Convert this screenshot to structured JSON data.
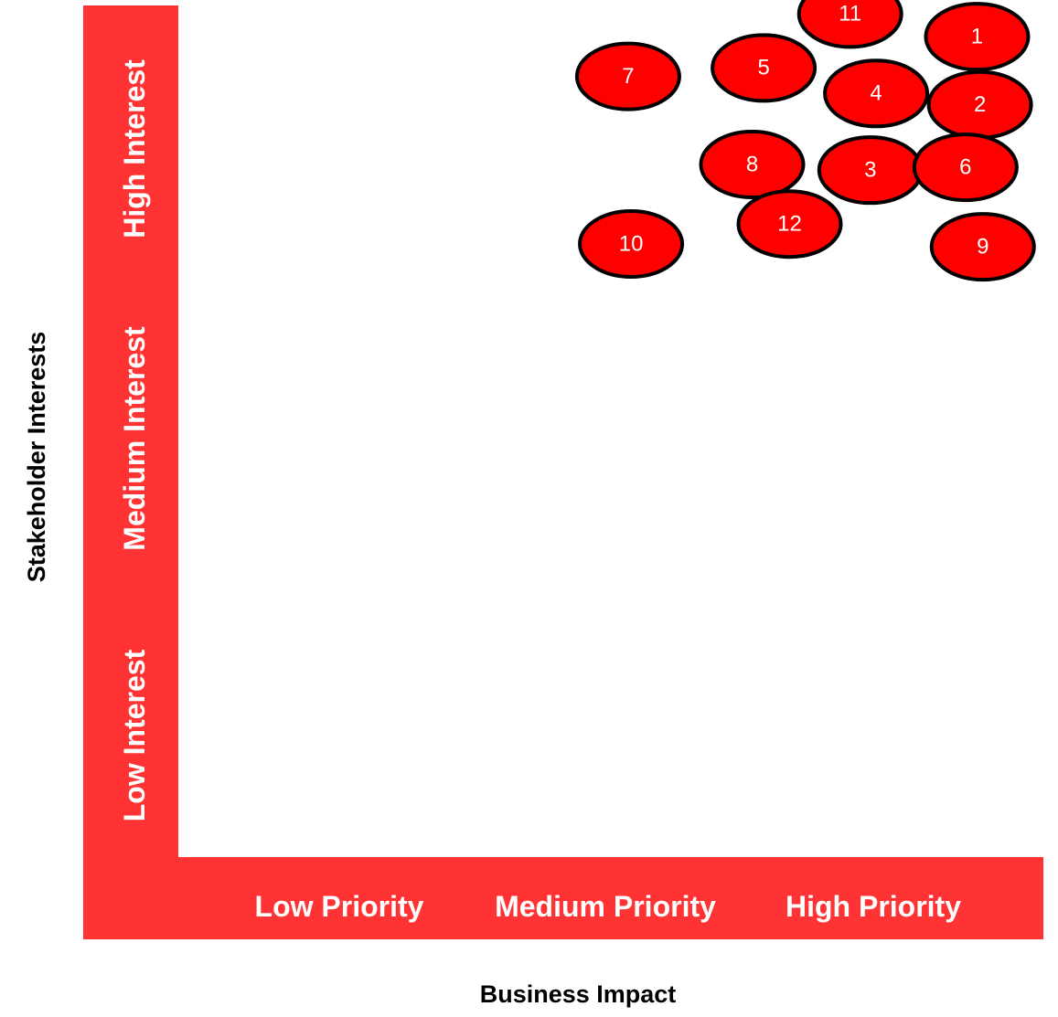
{
  "colors": {
    "band": "#ff3333",
    "bubble_fill": "#ff0000",
    "bubble_stroke": "#000000",
    "band_text": "#ffffff"
  },
  "chart_data": {
    "type": "scatter",
    "xlabel": "Business Impact",
    "ylabel": "Stakeholder Interests",
    "x_categories": [
      "Low Priority",
      "Medium Priority",
      "High Priority"
    ],
    "y_categories": [
      "Low Interest",
      "Medium Interest",
      "High Interest"
    ],
    "xlim": [
      0,
      3
    ],
    "ylim": [
      0,
      3
    ],
    "grid": false,
    "points": [
      {
        "label": "1",
        "x": 2.77,
        "y": 2.89
      },
      {
        "label": "2",
        "x": 2.78,
        "y": 2.65
      },
      {
        "label": "3",
        "x": 2.4,
        "y": 2.42
      },
      {
        "label": "4",
        "x": 2.42,
        "y": 2.69
      },
      {
        "label": "5",
        "x": 2.03,
        "y": 2.78
      },
      {
        "label": "6",
        "x": 2.73,
        "y": 2.43
      },
      {
        "label": "7",
        "x": 1.56,
        "y": 2.75
      },
      {
        "label": "8",
        "x": 1.99,
        "y": 2.44
      },
      {
        "label": "9",
        "x": 2.79,
        "y": 2.15
      },
      {
        "label": "10",
        "x": 1.57,
        "y": 2.16
      },
      {
        "label": "11",
        "x": 2.33,
        "y": 2.97
      },
      {
        "label": "12",
        "x": 2.12,
        "y": 2.23
      }
    ]
  }
}
